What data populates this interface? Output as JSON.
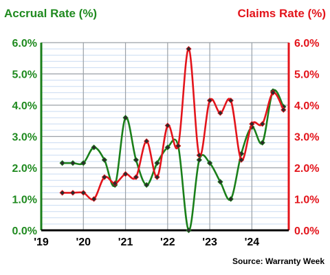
{
  "chart_data": {
    "type": "line",
    "title_left": "Accrual Rate (%)",
    "title_right": "Claims Rate (%)",
    "source": "Source: Warranty Week",
    "y_ticks": [
      "0.0%",
      "1.0%",
      "2.0%",
      "3.0%",
      "4.0%",
      "5.0%",
      "6.0%"
    ],
    "ylim": [
      0,
      6
    ],
    "x_ticks": [
      "'19",
      "'20",
      "'21",
      "'22",
      "'23",
      "'24"
    ],
    "x_tick_values": [
      2019,
      2020,
      2021,
      2022,
      2023,
      2024
    ],
    "xlim": [
      2019,
      2024.875
    ],
    "grid": true,
    "colors": {
      "accrual": "#1a7f1a",
      "claims": "#e3141b",
      "grid_minor": "#c9dcf2",
      "grid_major": "#9aa0a6"
    },
    "series": [
      {
        "key": "accrual",
        "axis": "left",
        "x": [
          2019.5,
          2019.75,
          2020.0,
          2020.25,
          2020.5,
          2020.75,
          2021.0,
          2021.25,
          2021.5,
          2021.75,
          2022.0,
          2022.25,
          2022.5,
          2022.75,
          2023.0,
          2023.25,
          2023.5,
          2023.75,
          2024.0,
          2024.25,
          2024.5,
          2024.75
        ],
        "values": [
          2.15,
          2.15,
          2.15,
          2.65,
          2.25,
          1.45,
          3.6,
          2.25,
          1.45,
          2.15,
          2.65,
          2.7,
          0.0,
          2.25,
          2.15,
          1.55,
          1.0,
          2.45,
          3.3,
          2.8,
          4.45,
          3.95
        ]
      },
      {
        "key": "claims",
        "axis": "right",
        "x": [
          2019.5,
          2019.75,
          2020.0,
          2020.25,
          2020.5,
          2020.75,
          2021.0,
          2021.25,
          2021.5,
          2021.75,
          2022.0,
          2022.25,
          2022.5,
          2022.75,
          2023.0,
          2023.25,
          2023.5,
          2023.75,
          2024.0,
          2024.25,
          2024.5,
          2024.75
        ],
        "values": [
          1.2,
          1.2,
          1.2,
          1.0,
          1.7,
          1.5,
          1.8,
          1.7,
          2.85,
          1.7,
          3.35,
          2.7,
          5.8,
          2.4,
          4.15,
          3.75,
          4.15,
          2.25,
          3.4,
          3.4,
          4.4,
          3.85
        ]
      }
    ]
  }
}
